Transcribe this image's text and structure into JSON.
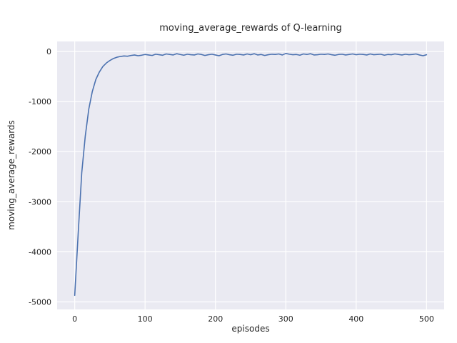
{
  "chart_data": {
    "type": "line",
    "title": "moving_average_rewards of Q-learning",
    "xlabel": "episodes",
    "ylabel": "moving_average_rewards",
    "xlim": [
      -25,
      525
    ],
    "ylim": [
      -5150,
      200
    ],
    "xticks": [
      0,
      100,
      200,
      300,
      400,
      500
    ],
    "yticks": [
      0,
      -1000,
      -2000,
      -3000,
      -4000,
      -5000
    ],
    "grid": true,
    "legend": "none",
    "style": {
      "axes_background": "#eaeaf2",
      "grid_color": "#ffffff",
      "line_color": "#4c72b0",
      "text_color": "#262626"
    },
    "series": [
      {
        "name": "moving_average_rewards",
        "color": "#4c72b0",
        "x": [
          0,
          5,
          10,
          15,
          20,
          25,
          30,
          35,
          40,
          45,
          50,
          55,
          60,
          65,
          70,
          75,
          80,
          85,
          90,
          95,
          100,
          105,
          110,
          115,
          120,
          125,
          130,
          135,
          140,
          145,
          150,
          155,
          160,
          165,
          170,
          175,
          180,
          185,
          190,
          195,
          200,
          205,
          210,
          215,
          220,
          225,
          230,
          235,
          240,
          245,
          250,
          255,
          260,
          265,
          270,
          275,
          280,
          285,
          290,
          295,
          300,
          305,
          310,
          315,
          320,
          325,
          330,
          335,
          340,
          345,
          350,
          355,
          360,
          365,
          370,
          375,
          380,
          385,
          390,
          395,
          400,
          405,
          410,
          415,
          420,
          425,
          430,
          435,
          440,
          445,
          450,
          455,
          460,
          465,
          470,
          475,
          480,
          485,
          490,
          495,
          500
        ],
        "y": [
          -4870,
          -3620,
          -2420,
          -1690,
          -1150,
          -800,
          -560,
          -410,
          -300,
          -230,
          -180,
          -140,
          -115,
          -100,
          -90,
          -95,
          -80,
          -70,
          -85,
          -75,
          -60,
          -70,
          -80,
          -55,
          -65,
          -75,
          -50,
          -60,
          -70,
          -45,
          -60,
          -75,
          -55,
          -65,
          -70,
          -50,
          -60,
          -80,
          -65,
          -55,
          -70,
          -85,
          -60,
          -50,
          -65,
          -75,
          -55,
          -60,
          -70,
          -50,
          -65,
          -45,
          -70,
          -60,
          -80,
          -65,
          -55,
          -60,
          -50,
          -70,
          -40,
          -55,
          -65,
          -60,
          -75,
          -50,
          -60,
          -45,
          -70,
          -65,
          -55,
          -60,
          -50,
          -65,
          -75,
          -60,
          -55,
          -70,
          -60,
          -50,
          -65,
          -55,
          -60,
          -70,
          -50,
          -65,
          -60,
          -55,
          -75,
          -60,
          -65,
          -50,
          -60,
          -70,
          -55,
          -65,
          -60,
          -50,
          -70,
          -85,
          -65
        ]
      }
    ]
  }
}
